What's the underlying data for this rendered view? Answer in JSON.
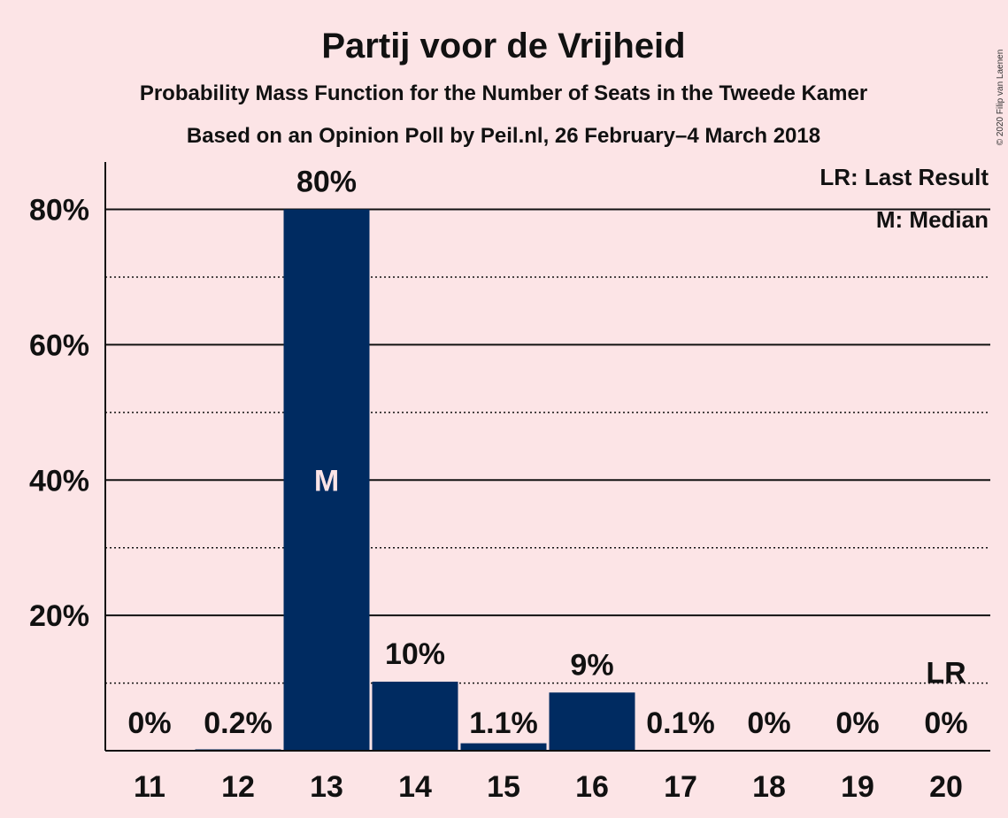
{
  "chart_data": {
    "type": "bar",
    "title": "Partij voor de Vrijheid",
    "subtitle": "Probability Mass Function for the Number of Seats in the Tweede Kamer",
    "subtitle2": "Based on an Opinion Poll by Peil.nl, 26 February–4 March 2018",
    "categories": [
      "11",
      "12",
      "13",
      "14",
      "15",
      "16",
      "17",
      "18",
      "19",
      "20"
    ],
    "values": [
      0,
      0.2,
      80,
      10.2,
      1.1,
      8.6,
      0.1,
      0,
      0,
      0
    ],
    "data_labels": [
      "0%",
      "0.2%",
      "80%",
      "10%",
      "1.1%",
      "9%",
      "0.1%",
      "0%",
      "0%",
      "0%"
    ],
    "ylim": [
      0,
      87
    ],
    "yticks": [
      20,
      40,
      60,
      80
    ],
    "ytick_labels": [
      "20%",
      "40%",
      "60%",
      "80%"
    ],
    "minor_gridlines": [
      10,
      30,
      50,
      70
    ],
    "median_category": "13",
    "median_marker": "M",
    "last_result_category": "20",
    "last_result_marker": "LR",
    "last_result_value": 10,
    "legend": [
      "LR: Last Result",
      "M: Median"
    ],
    "legend_position": "top-right",
    "bar_color": "#002b61",
    "background_color": "#fce4e6",
    "copyright": "© 2020 Filip van Laenen"
  }
}
